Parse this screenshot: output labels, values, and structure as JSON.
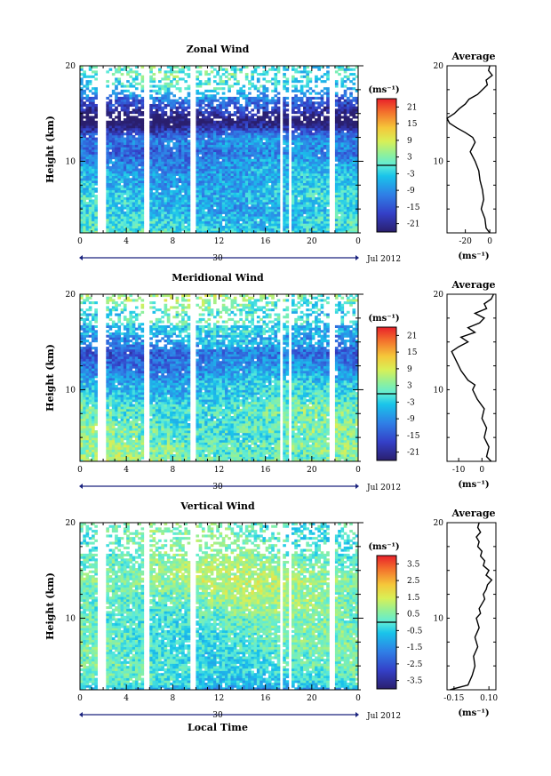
{
  "chart_data": [
    {
      "type": "heatmap",
      "title": "Zonal Wind",
      "ylabel": "Height (km)",
      "xlabel": "",
      "xlim": [
        0,
        24
      ],
      "ylim": [
        2.5,
        20
      ],
      "x_ticks": [
        "0",
        "4",
        "8",
        "12",
        "16",
        "20",
        "0"
      ],
      "y_ticks": [
        "10",
        "20"
      ],
      "date_ticks": [
        "30",
        "Jul 2012"
      ],
      "colorbar": {
        "unit": "(ms⁻¹)",
        "ticks": [
          "21",
          "15",
          "9",
          "3",
          "-3",
          "-9",
          "-15",
          "-21"
        ],
        "range": [
          -24,
          24
        ]
      },
      "profile": {
        "title": "Average",
        "xlabel": "(ms⁻¹)",
        "x_ticks": [
          "-20",
          "0"
        ],
        "xlim": [
          -35,
          5
        ],
        "heights": [
          2.5,
          3,
          4,
          5,
          6,
          7,
          8,
          9,
          10,
          10.5,
          11,
          11.5,
          12,
          12.5,
          13,
          13.5,
          14,
          14.5,
          15,
          15.5,
          16,
          16.5,
          17,
          17.5,
          18,
          18.5,
          19,
          19.5,
          20
        ],
        "values": [
          0,
          -3,
          -4,
          -7,
          -5,
          -6,
          -8,
          -9,
          -12,
          -14,
          -16,
          -14,
          -12,
          -14,
          -20,
          -27,
          -33,
          -35,
          -29,
          -25,
          -20,
          -17,
          -10,
          -6,
          -2,
          -3,
          2,
          -1,
          0
        ]
      }
    },
    {
      "type": "heatmap",
      "title": "Meridional Wind",
      "ylabel": "Height (km)",
      "xlabel": "",
      "xlim": [
        0,
        24
      ],
      "ylim": [
        2.5,
        20
      ],
      "x_ticks": [
        "0",
        "4",
        "8",
        "12",
        "16",
        "20",
        "0"
      ],
      "y_ticks": [
        "10",
        "20"
      ],
      "date_ticks": [
        "30",
        "Jul 2012"
      ],
      "colorbar": {
        "unit": "(ms⁻¹)",
        "ticks": [
          "21",
          "15",
          "9",
          "3",
          "-3",
          "-9",
          "-15",
          "-21"
        ],
        "range": [
          -24,
          24
        ]
      },
      "profile": {
        "title": "Average",
        "xlabel": "(ms⁻¹)",
        "x_ticks": [
          "-10",
          "0"
        ],
        "xlim": [
          -15,
          6
        ],
        "heights": [
          2.5,
          3,
          4,
          5,
          6,
          7,
          8,
          9,
          10,
          10.5,
          11,
          12,
          13,
          13.5,
          14,
          14.5,
          15,
          15.5,
          16,
          16.5,
          17,
          17.5,
          18,
          18.5,
          19,
          19.5,
          20
        ],
        "values": [
          4,
          2,
          3,
          1,
          2,
          0,
          1,
          -2,
          -4,
          -3,
          -6,
          -9,
          -11,
          -12,
          -13,
          -10,
          -6,
          -9,
          -3,
          -6,
          -1,
          1,
          -3,
          2,
          1,
          4,
          5
        ]
      }
    },
    {
      "type": "heatmap",
      "title": "Vertical Wind",
      "ylabel": "Height (km)",
      "xlabel": "Local Time",
      "xlim": [
        0,
        24
      ],
      "ylim": [
        2.5,
        20
      ],
      "x_ticks": [
        "0",
        "4",
        "8",
        "12",
        "16",
        "20",
        "0"
      ],
      "y_ticks": [
        "10",
        "20"
      ],
      "date_ticks": [
        "30",
        "Jul 2012"
      ],
      "colorbar": {
        "unit": "(ms⁻¹)",
        "ticks": [
          "3.5",
          "2.5",
          "1.5",
          "0.5",
          "-0.5",
          "-1.5",
          "-2.5",
          "-3.5"
        ],
        "range": [
          -4,
          4
        ]
      },
      "profile": {
        "title": "Average",
        "xlabel": "(ms⁻¹)",
        "x_ticks": [
          "-0.15",
          "0.10"
        ],
        "xlim": [
          -0.2,
          0.15
        ],
        "heights": [
          2.5,
          3,
          4,
          5,
          6,
          7,
          8,
          9,
          10,
          10.5,
          11,
          11.5,
          12,
          12.5,
          13,
          13.5,
          14,
          14.5,
          15,
          15.5,
          16,
          16.5,
          17,
          17.5,
          18,
          18.5,
          19,
          19.5,
          20
        ],
        "values": [
          -0.18,
          -0.05,
          -0.02,
          0.0,
          -0.01,
          0.02,
          0.0,
          0.03,
          0.01,
          0.04,
          0.03,
          0.05,
          0.07,
          0.06,
          0.08,
          0.09,
          0.12,
          0.08,
          0.1,
          0.06,
          0.07,
          0.04,
          0.05,
          0.02,
          0.03,
          0.01,
          0.04,
          0.02,
          0.03
        ]
      }
    }
  ]
}
